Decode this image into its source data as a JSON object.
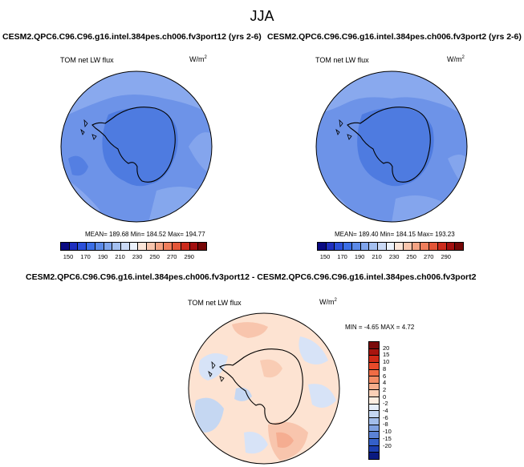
{
  "season": "JJA",
  "panels": [
    {
      "title": "CESM2.QPC6.C96.C96.g16.intel.384pes.ch006.fv3port12 (yrs 2-6)",
      "variable": "TOM net LW flux",
      "units_base": "W/m",
      "units_exp": "2",
      "stats": "MEAN= 189.68  Min= 184.52  Max= 194.77",
      "colorbar_ticks": [
        "150",
        "170",
        "190",
        "210",
        "230",
        "250",
        "270",
        "290"
      ],
      "colorbar_colors": [
        "#0a0a82",
        "#1f2fbf",
        "#2b4fd9",
        "#3b6ee6",
        "#5c8ae8",
        "#7fa4ec",
        "#a4c0f0",
        "#cad9f5",
        "#ebf1fb",
        "#fbe5d8",
        "#f8c5ad",
        "#f4a384",
        "#ef7e5c",
        "#e45638",
        "#cc2b1c",
        "#a30f0f",
        "#760606"
      ]
    },
    {
      "title": "CESM2.QPC6.C96.C96.g16.intel.384pes.ch006.fv3port2 (yrs 2-6)",
      "variable": "TOM net LW flux",
      "units_base": "W/m",
      "units_exp": "2",
      "stats": "MEAN= 189.40  Min= 184.15  Max= 193.23",
      "colorbar_ticks": [
        "150",
        "170",
        "190",
        "210",
        "230",
        "250",
        "270",
        "290"
      ],
      "colorbar_colors": [
        "#0a0a82",
        "#1f2fbf",
        "#2b4fd9",
        "#3b6ee6",
        "#5c8ae8",
        "#7fa4ec",
        "#a4c0f0",
        "#cad9f5",
        "#ebf1fb",
        "#fbe5d8",
        "#f8c5ad",
        "#f4a384",
        "#ef7e5c",
        "#e45638",
        "#cc2b1c",
        "#a30f0f",
        "#760606"
      ]
    }
  ],
  "difference": {
    "title": "CESM2.QPC6.C96.C96.g16.intel.384pes.ch006.fv3port12 - CESM2.QPC6.C96.C96.g16.intel.384pes.ch006.fv3port2",
    "variable": "TOM net LW flux",
    "units_base": "W/m",
    "units_exp": "2",
    "stats": "MIN = -4.65 MAX =  4.72",
    "colorbar_ticks": [
      "20",
      "15",
      "10",
      "8",
      "6",
      "4",
      "2",
      "0",
      "-2",
      "-4",
      "-6",
      "-8",
      "-10",
      "-15",
      "-20"
    ],
    "colorbar_colors": [
      "#7a0a0a",
      "#a8150f",
      "#cf2a17",
      "#e84a2a",
      "#f06c45",
      "#f48d66",
      "#f7ae8c",
      "#fad0b7",
      "#fdeee2",
      "#e6eefa",
      "#c5d7f2",
      "#a2bdea",
      "#7fa1e1",
      "#5b82d6",
      "#3560c9",
      "#1d3fb0",
      "#0a1a80"
    ]
  },
  "colors": {
    "ocean_base_blue": "#6d93e8",
    "ocean_light_blue": "#8eadef",
    "land_blue": "#4e7be0",
    "diff_base": "#fde3d2",
    "coastline": "#000000"
  }
}
